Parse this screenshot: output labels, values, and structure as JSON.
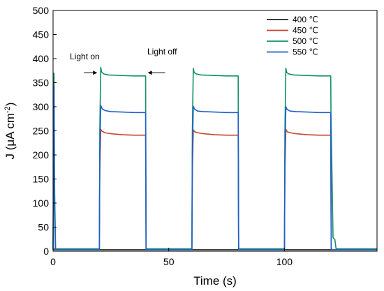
{
  "chart_data": {
    "type": "line",
    "xlabel": "Time (s)",
    "ylabel": "J (μA cm",
    "ylabel_sup": "-2",
    "ylabel_close": ")",
    "xlim": [
      0,
      140
    ],
    "ylim": [
      0,
      500
    ],
    "xticks": [
      0,
      50,
      100
    ],
    "yticks": [
      0,
      50,
      100,
      150,
      200,
      250,
      300,
      350,
      400,
      450,
      500
    ],
    "grid": false,
    "legend_position": "top-right",
    "annotations": [
      {
        "text": "Light on",
        "x": 20,
        "y": 370
      },
      {
        "text": "Light off",
        "x": 40,
        "y": 370
      }
    ],
    "series": [
      {
        "name": "400 ℃",
        "color": "#222222",
        "x": [
          0,
          140
        ],
        "y": [
          3,
          3
        ]
      },
      {
        "name": "450 ℃",
        "color": "#c8412c",
        "x": [
          0,
          0.6,
          0.9,
          20,
          20.2,
          20.6,
          21.2,
          22.5,
          25,
          30,
          35,
          40,
          40.2,
          60,
          60.2,
          60.6,
          61.2,
          62.5,
          65,
          70,
          75,
          80,
          80.2,
          100,
          100.2,
          100.6,
          101.2,
          102.5,
          105,
          110,
          115,
          120,
          120.2,
          121,
          140
        ],
        "y": [
          5,
          5,
          3,
          3,
          170,
          253,
          249,
          246,
          244,
          242,
          241,
          241,
          3,
          3,
          170,
          252,
          248,
          246,
          244,
          242,
          241,
          241,
          3,
          3,
          170,
          253,
          248,
          246,
          244,
          242,
          241,
          241,
          5,
          3,
          3
        ]
      },
      {
        "name": "500 ℃",
        "color": "#139068",
        "x": [
          0,
          0.4,
          0.7,
          1.1,
          20,
          20.2,
          20.6,
          21,
          22,
          24,
          30,
          35,
          40,
          40.2,
          60,
          60.2,
          60.6,
          61,
          62,
          64,
          70,
          75,
          80,
          80.2,
          100,
          100.2,
          100.6,
          101,
          102,
          104,
          110,
          115,
          120,
          120.1,
          121,
          121.8,
          122.3,
          140
        ],
        "y": [
          5,
          370,
          120,
          5,
          5,
          250,
          382,
          372,
          368,
          366,
          365,
          364,
          364,
          5,
          5,
          250,
          380,
          371,
          368,
          366,
          365,
          364,
          364,
          5,
          5,
          250,
          380,
          371,
          368,
          366,
          365,
          364,
          364,
          285,
          28,
          24,
          5,
          5
        ]
      },
      {
        "name": "550 ℃",
        "color": "#1f5fcd",
        "x": [
          0,
          0.4,
          0.6,
          1,
          20,
          20.2,
          20.6,
          21.2,
          22.5,
          25,
          30,
          35,
          40,
          40.2,
          60,
          60.2,
          60.6,
          61.2,
          62.5,
          65,
          70,
          75,
          80,
          80.2,
          100,
          100.2,
          100.6,
          101.2,
          102.5,
          105,
          110,
          115,
          120,
          120.2,
          121,
          140
        ],
        "y": [
          3,
          345,
          90,
          3,
          3,
          200,
          303,
          296,
          292,
          290,
          289,
          288,
          288,
          3,
          3,
          200,
          301,
          295,
          291,
          290,
          289,
          288,
          288,
          3,
          3,
          200,
          300,
          294,
          291,
          290,
          289,
          288,
          288,
          3,
          3,
          3
        ]
      }
    ]
  }
}
